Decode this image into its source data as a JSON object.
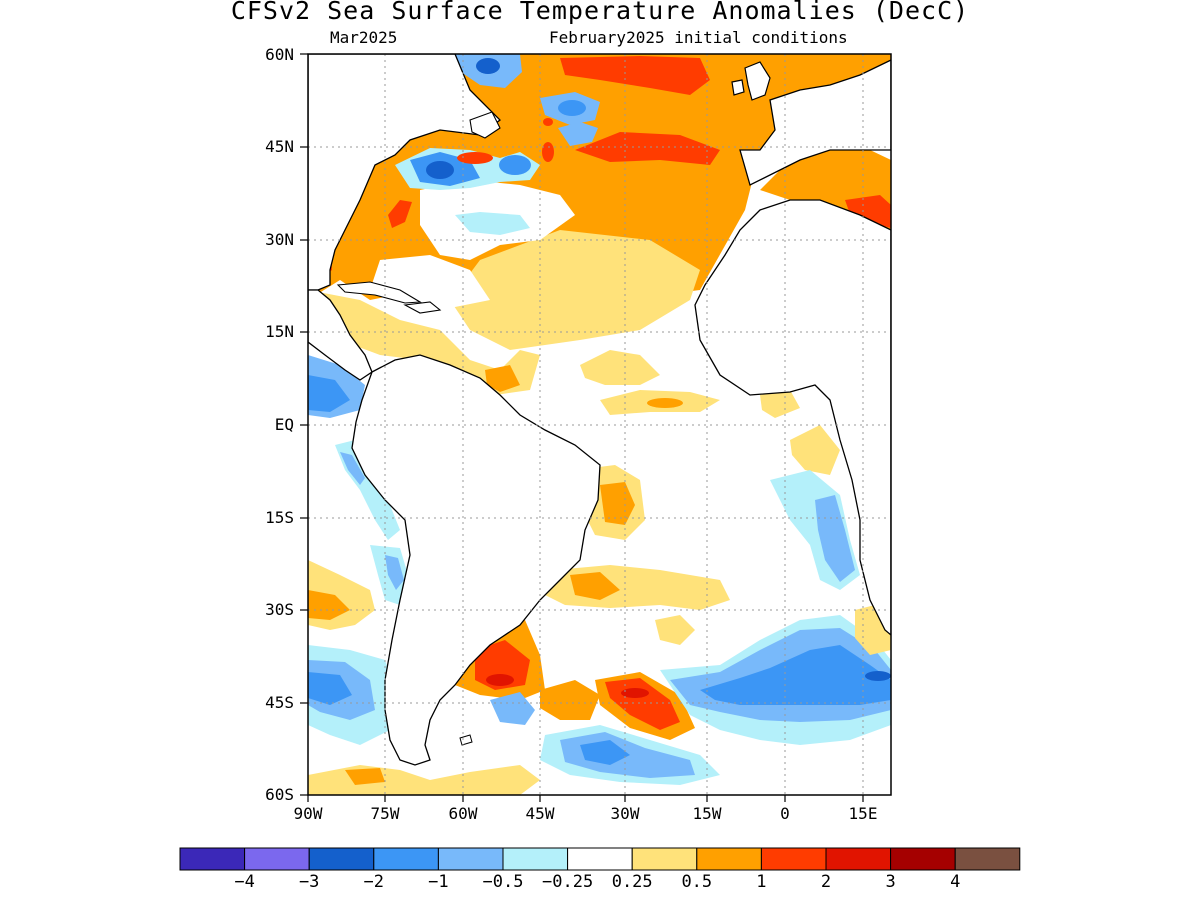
{
  "title": "CFSv2 Sea Surface Temperature Anomalies (DecC)",
  "subtitle_left": "Mar2025",
  "subtitle_right": "February2025 initial conditions",
  "lat_labels": [
    "60N",
    "45N",
    "30N",
    "15N",
    "EQ",
    "15S",
    "30S",
    "45S",
    "60S"
  ],
  "lon_labels": [
    "90W",
    "75W",
    "60W",
    "45W",
    "30W",
    "15W",
    "0",
    "15E"
  ],
  "colorbar": {
    "colors": [
      "#3b28b8",
      "#7b68ee",
      "#1460cc",
      "#3c96f5",
      "#78b9fa",
      "#b4f0fa",
      "#ffffff",
      "#ffe27a",
      "#ffa000",
      "#ff3c00",
      "#e11400",
      "#a50000",
      "#7a5040"
    ],
    "labels": [
      "−4",
      "−3",
      "−2",
      "−1",
      "−0.5",
      "−0.25",
      "0.25",
      "0.5",
      "1",
      "2",
      "3",
      "4"
    ]
  },
  "map": {
    "region": "Atlantic Ocean, 90W–20E, 60S–60N",
    "gridlines": true
  }
}
